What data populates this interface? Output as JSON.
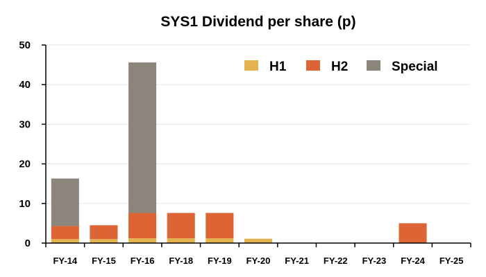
{
  "chart_data": {
    "type": "bar",
    "stacked": true,
    "title": "SYS1 Dividend per share (p)",
    "xlabel": "",
    "ylabel": "",
    "ylim": [
      0,
      50
    ],
    "yticks": [
      0,
      10,
      20,
      30,
      40,
      50
    ],
    "grid": true,
    "legend": "top-right",
    "categories": [
      "FY-14",
      "FY-15",
      "FY-16",
      "FY-18",
      "FY-19",
      "FY-20",
      "FY-21",
      "FY-22",
      "FY-23",
      "FY-24",
      "FY-25"
    ],
    "series": [
      {
        "name": "H1",
        "color": "#e3b34f",
        "values": [
          1.0,
          1.0,
          1.2,
          1.2,
          1.2,
          1.1,
          0,
          0,
          0,
          0,
          0
        ]
      },
      {
        "name": "H2",
        "color": "#dd6535",
        "values": [
          3.3,
          3.5,
          6.4,
          6.4,
          6.4,
          0,
          0,
          0,
          0,
          5.0,
          0
        ]
      },
      {
        "name": "Special",
        "color": "#8c857c",
        "values": [
          12.0,
          0,
          38.0,
          0,
          0,
          0,
          0,
          0,
          0,
          0,
          0
        ]
      }
    ]
  }
}
